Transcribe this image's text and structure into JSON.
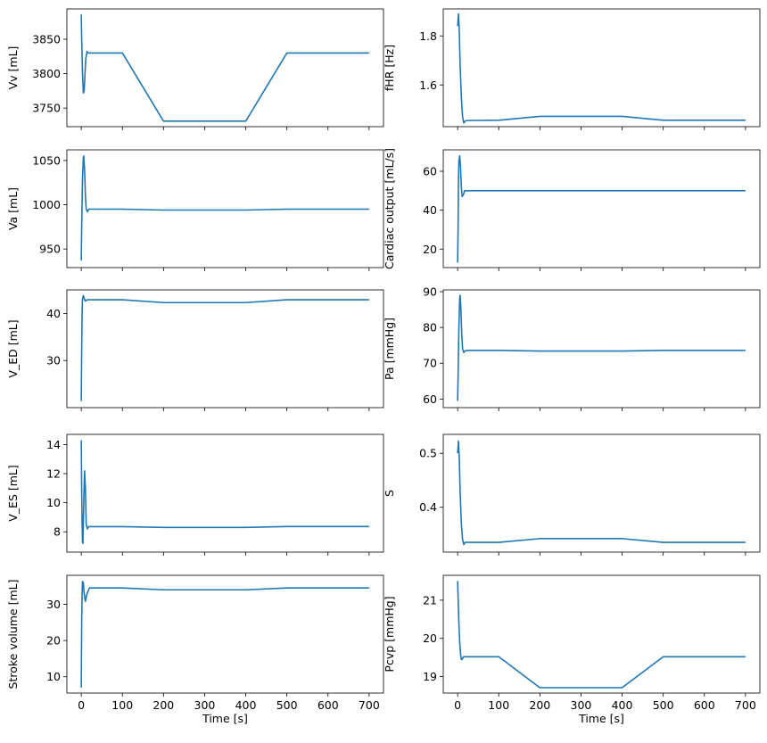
{
  "figure": {
    "line_color": "#1f77b4"
  },
  "chart_data": [
    {
      "type": "line",
      "ylabel": "Vv [mL]",
      "xlabel": "",
      "xlim": [
        -35,
        735
      ],
      "ylim": [
        3723,
        3894
      ],
      "xticks": [
        0,
        100,
        200,
        300,
        400,
        500,
        600,
        700
      ],
      "xtick_labels": [],
      "yticks": [
        3750,
        3800,
        3850
      ],
      "ytick_labels": [
        "3750",
        "3800",
        "3850"
      ],
      "series": [
        {
          "x": [
            0,
            1,
            3,
            5,
            7,
            9,
            11,
            14,
            17,
            20,
            25,
            100,
            200,
            400,
            500,
            700
          ],
          "y": [
            3886,
            3850,
            3800,
            3772,
            3775,
            3800,
            3822,
            3832,
            3830,
            3830,
            3830,
            3830,
            3731,
            3731,
            3830,
            3830
          ]
        }
      ]
    },
    {
      "type": "line",
      "ylabel": "fHR [Hz]",
      "xlabel": "",
      "xlim": [
        -35,
        735
      ],
      "ylim": [
        1.43,
        1.91
      ],
      "xticks": [
        0,
        100,
        200,
        300,
        400,
        500,
        600,
        700
      ],
      "xtick_labels": [],
      "yticks": [
        1.6,
        1.8
      ],
      "ytick_labels": [
        "1.6",
        "1.8"
      ],
      "series": [
        {
          "x": [
            0,
            2,
            4,
            6,
            9,
            12,
            15,
            18,
            22,
            25,
            100,
            200,
            400,
            500,
            700
          ],
          "y": [
            1.84,
            1.89,
            1.82,
            1.68,
            1.55,
            1.47,
            1.445,
            1.452,
            1.455,
            1.455,
            1.456,
            1.472,
            1.472,
            1.456,
            1.456
          ]
        }
      ]
    },
    {
      "type": "line",
      "ylabel": "Va [mL]",
      "xlabel": "",
      "xlim": [
        -35,
        735
      ],
      "ylim": [
        929,
        1062
      ],
      "xticks": [
        0,
        100,
        200,
        300,
        400,
        500,
        600,
        700
      ],
      "xtick_labels": [],
      "yticks": [
        950,
        1000,
        1050
      ],
      "ytick_labels": [
        "950",
        "1000",
        "1050"
      ],
      "series": [
        {
          "x": [
            0,
            1,
            3,
            5,
            6,
            8,
            10,
            12,
            15,
            18,
            22,
            25,
            100,
            200,
            400,
            500,
            700
          ],
          "y": [
            937,
            975,
            1030,
            1053,
            1055,
            1040,
            1010,
            995,
            992,
            995,
            995,
            995,
            995,
            994,
            994,
            995,
            995
          ]
        }
      ]
    },
    {
      "type": "line",
      "ylabel": "Cardiac output [mL/s]",
      "xlabel": "",
      "xlim": [
        -35,
        735
      ],
      "ylim": [
        10.5,
        71
      ],
      "xticks": [
        0,
        100,
        200,
        300,
        400,
        500,
        600,
        700
      ],
      "xtick_labels": [],
      "yticks": [
        20,
        40,
        60
      ],
      "ytick_labels": [
        "20",
        "40",
        "60"
      ],
      "series": [
        {
          "x": [
            0,
            1,
            2,
            3,
            5,
            7,
            9,
            11,
            14,
            17,
            20,
            25,
            100,
            200,
            400,
            500,
            700
          ],
          "y": [
            13,
            30,
            55,
            65,
            68,
            62,
            52,
            47,
            48,
            50,
            50,
            50,
            50,
            50,
            50,
            50,
            50
          ]
        }
      ]
    },
    {
      "type": "line",
      "ylabel": "V_ED [mL]",
      "xlabel": "",
      "xlim": [
        -35,
        735
      ],
      "ylim": [
        20,
        45
      ],
      "xticks": [
        0,
        100,
        200,
        300,
        400,
        500,
        600,
        700
      ],
      "xtick_labels": [],
      "yticks": [
        30,
        40
      ],
      "ytick_labels": [
        "30",
        "40"
      ],
      "series": [
        {
          "x": [
            0,
            1,
            2,
            3,
            5,
            7,
            10,
            14,
            20,
            100,
            200,
            400,
            500,
            700
          ],
          "y": [
            21.4,
            32,
            40,
            43,
            43.8,
            43.2,
            42.6,
            42.9,
            42.9,
            42.9,
            42.3,
            42.3,
            42.9,
            42.9
          ]
        }
      ]
    },
    {
      "type": "line",
      "ylabel": "Pa [mmHg]",
      "xlabel": "",
      "xlim": [
        -35,
        735
      ],
      "ylim": [
        57.6,
        90.5
      ],
      "xticks": [
        0,
        100,
        200,
        300,
        400,
        500,
        600,
        700
      ],
      "xtick_labels": [],
      "yticks": [
        60,
        70,
        80,
        90
      ],
      "ytick_labels": [
        "60",
        "70",
        "80",
        "90"
      ],
      "series": [
        {
          "x": [
            0,
            1,
            3,
            5,
            6,
            8,
            10,
            12,
            15,
            18,
            22,
            25,
            100,
            200,
            400,
            500,
            700
          ],
          "y": [
            59.5,
            66,
            80,
            88,
            89,
            85,
            78,
            74,
            73,
            73.5,
            73.5,
            73.6,
            73.6,
            73.4,
            73.4,
            73.6,
            73.6
          ]
        }
      ]
    },
    {
      "type": "line",
      "ylabel": "V_ES [mL]",
      "xlabel": "",
      "xlim": [
        -35,
        735
      ],
      "ylim": [
        6.6,
        14.7
      ],
      "xticks": [
        0,
        100,
        200,
        300,
        400,
        500,
        600,
        700
      ],
      "xtick_labels": [],
      "yticks": [
        8,
        10,
        12,
        14
      ],
      "ytick_labels": [
        "8",
        "10",
        "12",
        "14"
      ],
      "series": [
        {
          "x": [
            0,
            1,
            2,
            3,
            4,
            6,
            8,
            10,
            12,
            15,
            18,
            22,
            25,
            100,
            200,
            400,
            500,
            700
          ],
          "y": [
            14.3,
            11,
            8.5,
            7.3,
            7.2,
            10,
            12.2,
            11,
            8.5,
            8.2,
            8.35,
            8.35,
            8.35,
            8.35,
            8.3,
            8.3,
            8.36,
            8.36
          ]
        }
      ]
    },
    {
      "type": "line",
      "ylabel": "S",
      "xlabel": "",
      "xlim": [
        -35,
        735
      ],
      "ylim": [
        0.317,
        0.535
      ],
      "xticks": [
        0,
        100,
        200,
        300,
        400,
        500,
        600,
        700
      ],
      "xtick_labels": [],
      "yticks": [
        0.4,
        0.5
      ],
      "ytick_labels": [
        "0.4",
        "0.5"
      ],
      "series": [
        {
          "x": [
            0,
            2,
            4,
            6,
            9,
            12,
            15,
            18,
            22,
            25,
            100,
            200,
            400,
            500,
            700
          ],
          "y": [
            0.5,
            0.523,
            0.49,
            0.43,
            0.37,
            0.34,
            0.331,
            0.335,
            0.335,
            0.335,
            0.335,
            0.342,
            0.342,
            0.335,
            0.335
          ]
        }
      ]
    },
    {
      "type": "line",
      "ylabel": "Stroke volume [mL]",
      "xlabel": "Time [s]",
      "xlim": [
        -35,
        735
      ],
      "ylim": [
        5.5,
        38
      ],
      "xticks": [
        0,
        100,
        200,
        300,
        400,
        500,
        600,
        700
      ],
      "xtick_labels": [
        "0",
        "100",
        "200",
        "300",
        "400",
        "500",
        "600",
        "700"
      ],
      "yticks": [
        10,
        20,
        30
      ],
      "ytick_labels": [
        "10",
        "20",
        "30"
      ],
      "series": [
        {
          "x": [
            0,
            1,
            2,
            3,
            5,
            7,
            10,
            14,
            20,
            100,
            200,
            400,
            500,
            700
          ],
          "y": [
            7,
            25,
            33,
            36.3,
            36,
            33,
            30.8,
            33,
            34.5,
            34.5,
            34,
            34,
            34.5,
            34.5
          ]
        }
      ]
    },
    {
      "type": "line",
      "ylabel": "Pcvp [mmHg]",
      "xlabel": "Time [s]",
      "xlim": [
        -35,
        735
      ],
      "ylim": [
        18.57,
        21.65
      ],
      "xticks": [
        0,
        100,
        200,
        300,
        400,
        500,
        600,
        700
      ],
      "xtick_labels": [
        "0",
        "100",
        "200",
        "300",
        "400",
        "500",
        "600",
        "700"
      ],
      "yticks": [
        19,
        20,
        21
      ],
      "ytick_labels": [
        "19",
        "20",
        "21"
      ],
      "series": [
        {
          "x": [
            0,
            1,
            3,
            5,
            7,
            9,
            11,
            14,
            17,
            20,
            25,
            100,
            200,
            400,
            500,
            700
          ],
          "y": [
            21.5,
            21.1,
            20.4,
            19.9,
            19.6,
            19.45,
            19.45,
            19.52,
            19.52,
            19.52,
            19.52,
            19.52,
            18.71,
            18.71,
            19.52,
            19.52
          ]
        }
      ]
    }
  ]
}
